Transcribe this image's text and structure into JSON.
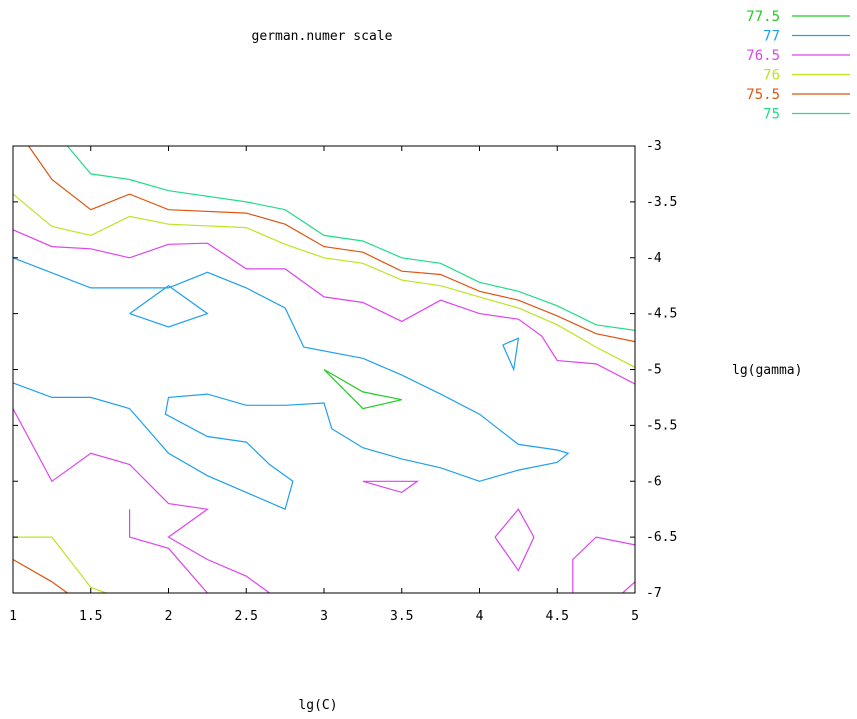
{
  "chart_data": {
    "type": "contour",
    "title": "german.numer scale",
    "xlabel": "lg(C)",
    "ylabel": "lg(gamma)",
    "xlim": [
      1,
      5
    ],
    "ylim": [
      -7,
      -3
    ],
    "x_ticks": [
      "1",
      "1.5",
      "2",
      "2.5",
      "3",
      "3.5",
      "4",
      "4.5",
      "5"
    ],
    "y_ticks": [
      "-3",
      "-3.5",
      "-4",
      "-4.5",
      "-5",
      "-5.5",
      "-6",
      "-6.5",
      "-7"
    ],
    "grid": false,
    "legend_position": "top-right",
    "series": [
      {
        "name": "77.5",
        "color": "#22cc22",
        "lines": [
          [
            [
              3.0,
              -5.0
            ],
            [
              3.25,
              -5.35
            ],
            [
              3.5,
              -5.27
            ],
            [
              3.25,
              -5.2
            ],
            [
              3.0,
              -5.0
            ]
          ]
        ]
      },
      {
        "name": "77",
        "color": "#1fa0ee",
        "lines": [
          [
            [
              1.0,
              -4.0
            ],
            [
              1.5,
              -4.27
            ],
            [
              1.75,
              -4.27
            ],
            [
              2.0,
              -4.27
            ],
            [
              2.25,
              -4.13
            ],
            [
              2.5,
              -4.27
            ],
            [
              2.75,
              -4.45
            ],
            [
              2.87,
              -4.8
            ],
            [
              3.25,
              -4.9
            ],
            [
              3.5,
              -5.05
            ],
            [
              3.75,
              -5.22
            ],
            [
              4.0,
              -5.4
            ],
            [
              4.25,
              -5.67
            ],
            [
              4.5,
              -5.72
            ],
            [
              4.57,
              -5.75
            ],
            [
              4.5,
              -5.83
            ],
            [
              4.25,
              -5.9
            ],
            [
              4.0,
              -6.0
            ],
            [
              3.75,
              -5.88
            ],
            [
              3.5,
              -5.8
            ],
            [
              3.25,
              -5.7
            ],
            [
              3.05,
              -5.53
            ],
            [
              3.0,
              -5.3
            ],
            [
              2.75,
              -5.32
            ],
            [
              2.5,
              -5.32
            ],
            [
              2.25,
              -5.22
            ],
            [
              2.0,
              -5.25
            ],
            [
              1.98,
              -5.4
            ],
            [
              2.25,
              -5.6
            ],
            [
              2.5,
              -5.65
            ],
            [
              2.65,
              -5.85
            ],
            [
              2.8,
              -6.0
            ],
            [
              2.75,
              -6.25
            ],
            [
              2.5,
              -6.1
            ],
            [
              2.25,
              -5.95
            ],
            [
              2.0,
              -5.75
            ],
            [
              1.75,
              -5.35
            ],
            [
              1.5,
              -5.25
            ],
            [
              1.25,
              -5.25
            ],
            [
              1.0,
              -5.12
            ]
          ],
          [
            [
              1.75,
              -4.5
            ],
            [
              2.0,
              -4.25
            ],
            [
              2.25,
              -4.5
            ],
            [
              2.0,
              -4.62
            ],
            [
              1.75,
              -4.5
            ]
          ],
          [
            [
              4.15,
              -4.78
            ],
            [
              4.25,
              -4.72
            ],
            [
              4.22,
              -5.0
            ],
            [
              4.15,
              -4.78
            ]
          ]
        ]
      },
      {
        "name": "76.5",
        "color": "#dd44ee",
        "lines": [
          [
            [
              1.0,
              -3.75
            ],
            [
              1.25,
              -3.9
            ],
            [
              1.5,
              -3.92
            ],
            [
              1.75,
              -4.0
            ],
            [
              2.0,
              -3.88
            ],
            [
              2.25,
              -3.87
            ],
            [
              2.5,
              -4.1
            ],
            [
              2.75,
              -4.1
            ],
            [
              3.0,
              -4.35
            ],
            [
              3.25,
              -4.4
            ],
            [
              3.5,
              -4.57
            ],
            [
              3.75,
              -4.38
            ],
            [
              4.0,
              -4.5
            ],
            [
              4.25,
              -4.55
            ],
            [
              4.4,
              -4.7
            ],
            [
              4.5,
              -4.92
            ],
            [
              4.75,
              -4.95
            ],
            [
              5.0,
              -5.13
            ]
          ],
          [
            [
              1.0,
              -5.35
            ],
            [
              1.25,
              -6.0
            ],
            [
              1.5,
              -5.75
            ],
            [
              1.75,
              -5.85
            ],
            [
              2.0,
              -6.2
            ],
            [
              2.25,
              -6.25
            ],
            [
              2.0,
              -6.5
            ],
            [
              2.25,
              -6.7
            ],
            [
              2.5,
              -6.85
            ],
            [
              2.65,
              -7.0
            ]
          ],
          [
            [
              1.75,
              -6.25
            ],
            [
              1.75,
              -6.5
            ],
            [
              2.0,
              -6.6
            ],
            [
              2.25,
              -7.0
            ]
          ],
          [
            [
              3.25,
              -6.0
            ],
            [
              3.5,
              -6.1
            ],
            [
              3.6,
              -6.0
            ],
            [
              3.25,
              -6.0
            ]
          ],
          [
            [
              4.1,
              -6.5
            ],
            [
              4.25,
              -6.25
            ],
            [
              4.35,
              -6.5
            ],
            [
              4.25,
              -6.8
            ],
            [
              4.1,
              -6.5
            ]
          ],
          [
            [
              4.6,
              -7.0
            ],
            [
              4.6,
              -6.7
            ],
            [
              4.75,
              -6.5
            ],
            [
              5.0,
              -6.57
            ]
          ],
          [
            [
              4.92,
              -7.0
            ],
            [
              5.0,
              -6.9
            ]
          ]
        ]
      },
      {
        "name": "76",
        "color": "#bbe522",
        "lines": [
          [
            [
              1.0,
              -3.43
            ],
            [
              1.25,
              -3.72
            ],
            [
              1.5,
              -3.8
            ],
            [
              1.75,
              -3.63
            ],
            [
              2.0,
              -3.7
            ],
            [
              2.5,
              -3.73
            ],
            [
              2.75,
              -3.88
            ],
            [
              3.0,
              -4.0
            ],
            [
              3.25,
              -4.05
            ],
            [
              3.5,
              -4.2
            ],
            [
              3.75,
              -4.25
            ],
            [
              4.0,
              -4.35
            ],
            [
              4.25,
              -4.45
            ],
            [
              4.5,
              -4.6
            ],
            [
              4.75,
              -4.8
            ],
            [
              5.0,
              -4.98
            ]
          ],
          [
            [
              1.0,
              -6.5
            ],
            [
              1.25,
              -6.5
            ],
            [
              1.5,
              -6.95
            ],
            [
              1.6,
              -7.0
            ]
          ]
        ]
      },
      {
        "name": "75.5",
        "color": "#dd5511",
        "lines": [
          [
            [
              1.1,
              -3.0
            ],
            [
              1.25,
              -3.3
            ],
            [
              1.5,
              -3.57
            ],
            [
              1.75,
              -3.43
            ],
            [
              2.0,
              -3.57
            ],
            [
              2.5,
              -3.6
            ],
            [
              2.75,
              -3.7
            ],
            [
              3.0,
              -3.9
            ],
            [
              3.25,
              -3.95
            ],
            [
              3.5,
              -4.12
            ],
            [
              3.75,
              -4.15
            ],
            [
              4.0,
              -4.3
            ],
            [
              4.25,
              -4.38
            ],
            [
              4.5,
              -4.52
            ],
            [
              4.75,
              -4.68
            ],
            [
              5.0,
              -4.75
            ]
          ],
          [
            [
              1.0,
              -6.7
            ],
            [
              1.25,
              -6.9
            ],
            [
              1.35,
              -7.0
            ]
          ]
        ]
      },
      {
        "name": "75",
        "color": "#22dd88",
        "lines": [
          [
            [
              1.35,
              -3.0
            ],
            [
              1.5,
              -3.25
            ],
            [
              1.75,
              -3.3
            ],
            [
              2.0,
              -3.4
            ],
            [
              2.5,
              -3.5
            ],
            [
              2.75,
              -3.57
            ],
            [
              3.0,
              -3.8
            ],
            [
              3.25,
              -3.85
            ],
            [
              3.5,
              -4.0
            ],
            [
              3.75,
              -4.05
            ],
            [
              4.0,
              -4.22
            ],
            [
              4.25,
              -4.3
            ],
            [
              4.5,
              -4.43
            ],
            [
              4.75,
              -4.6
            ],
            [
              5.0,
              -4.65
            ]
          ]
        ]
      }
    ]
  }
}
